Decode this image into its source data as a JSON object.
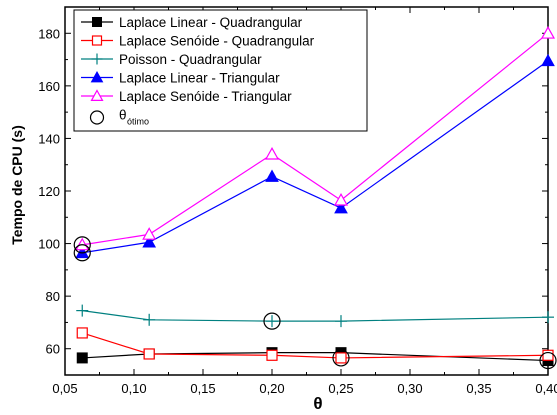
{
  "chart_data": {
    "type": "line",
    "xlabel": "θ",
    "ylabel": "Tempo de CPU (s)",
    "xlim": [
      0.05,
      0.4
    ],
    "ylim": [
      50,
      190
    ],
    "xticks": [
      0.05,
      0.1,
      0.15,
      0.2,
      0.25,
      0.3,
      0.35,
      0.4
    ],
    "xtick_labels": [
      "0,05",
      "0,10",
      "0,15",
      "0,20",
      "0,25",
      "0,30",
      "0,35",
      "0,40"
    ],
    "yticks": [
      60,
      80,
      100,
      120,
      140,
      160,
      180
    ],
    "ytick_labels": [
      "60",
      "80",
      "100",
      "120",
      "140",
      "160",
      "180"
    ],
    "grid": false,
    "legend_position": "top-left",
    "x": [
      0.0625,
      0.111,
      0.2,
      0.25,
      0.4
    ],
    "series": [
      {
        "name": "Laplace Linear - Quadrangular",
        "values": [
          56.5,
          58,
          58.5,
          58.5,
          55.5
        ],
        "color": "#000000",
        "marker": "square-filled"
      },
      {
        "name": "Laplace Senóide - Quadrangular",
        "values": [
          66,
          58,
          57.5,
          56.5,
          57.5
        ],
        "color": "#ff0000",
        "marker": "square-open"
      },
      {
        "name": "Poisson - Quadrangular",
        "values": [
          74.5,
          71,
          70.5,
          70.5,
          72
        ],
        "color": "#008080",
        "marker": "plus"
      },
      {
        "name": "Laplace Linear - Triangular",
        "values": [
          96.5,
          100.5,
          125.5,
          113.5,
          169.5
        ],
        "color": "#0000ff",
        "marker": "triangle-filled"
      },
      {
        "name": "Laplace Senóide - Triangular",
        "values": [
          99.5,
          103.5,
          134,
          116.5,
          180
        ],
        "color": "#ff00ff",
        "marker": "triangle-open"
      }
    ],
    "optimum": {
      "name_main": "θ",
      "name_sub": "ótimo",
      "color": "#000000",
      "points": [
        {
          "x": 0.0625,
          "y": 99.5
        },
        {
          "x": 0.0625,
          "y": 96.5
        },
        {
          "x": 0.2,
          "y": 70.5
        },
        {
          "x": 0.25,
          "y": 56.5
        },
        {
          "x": 0.4,
          "y": 55.5
        }
      ]
    }
  }
}
